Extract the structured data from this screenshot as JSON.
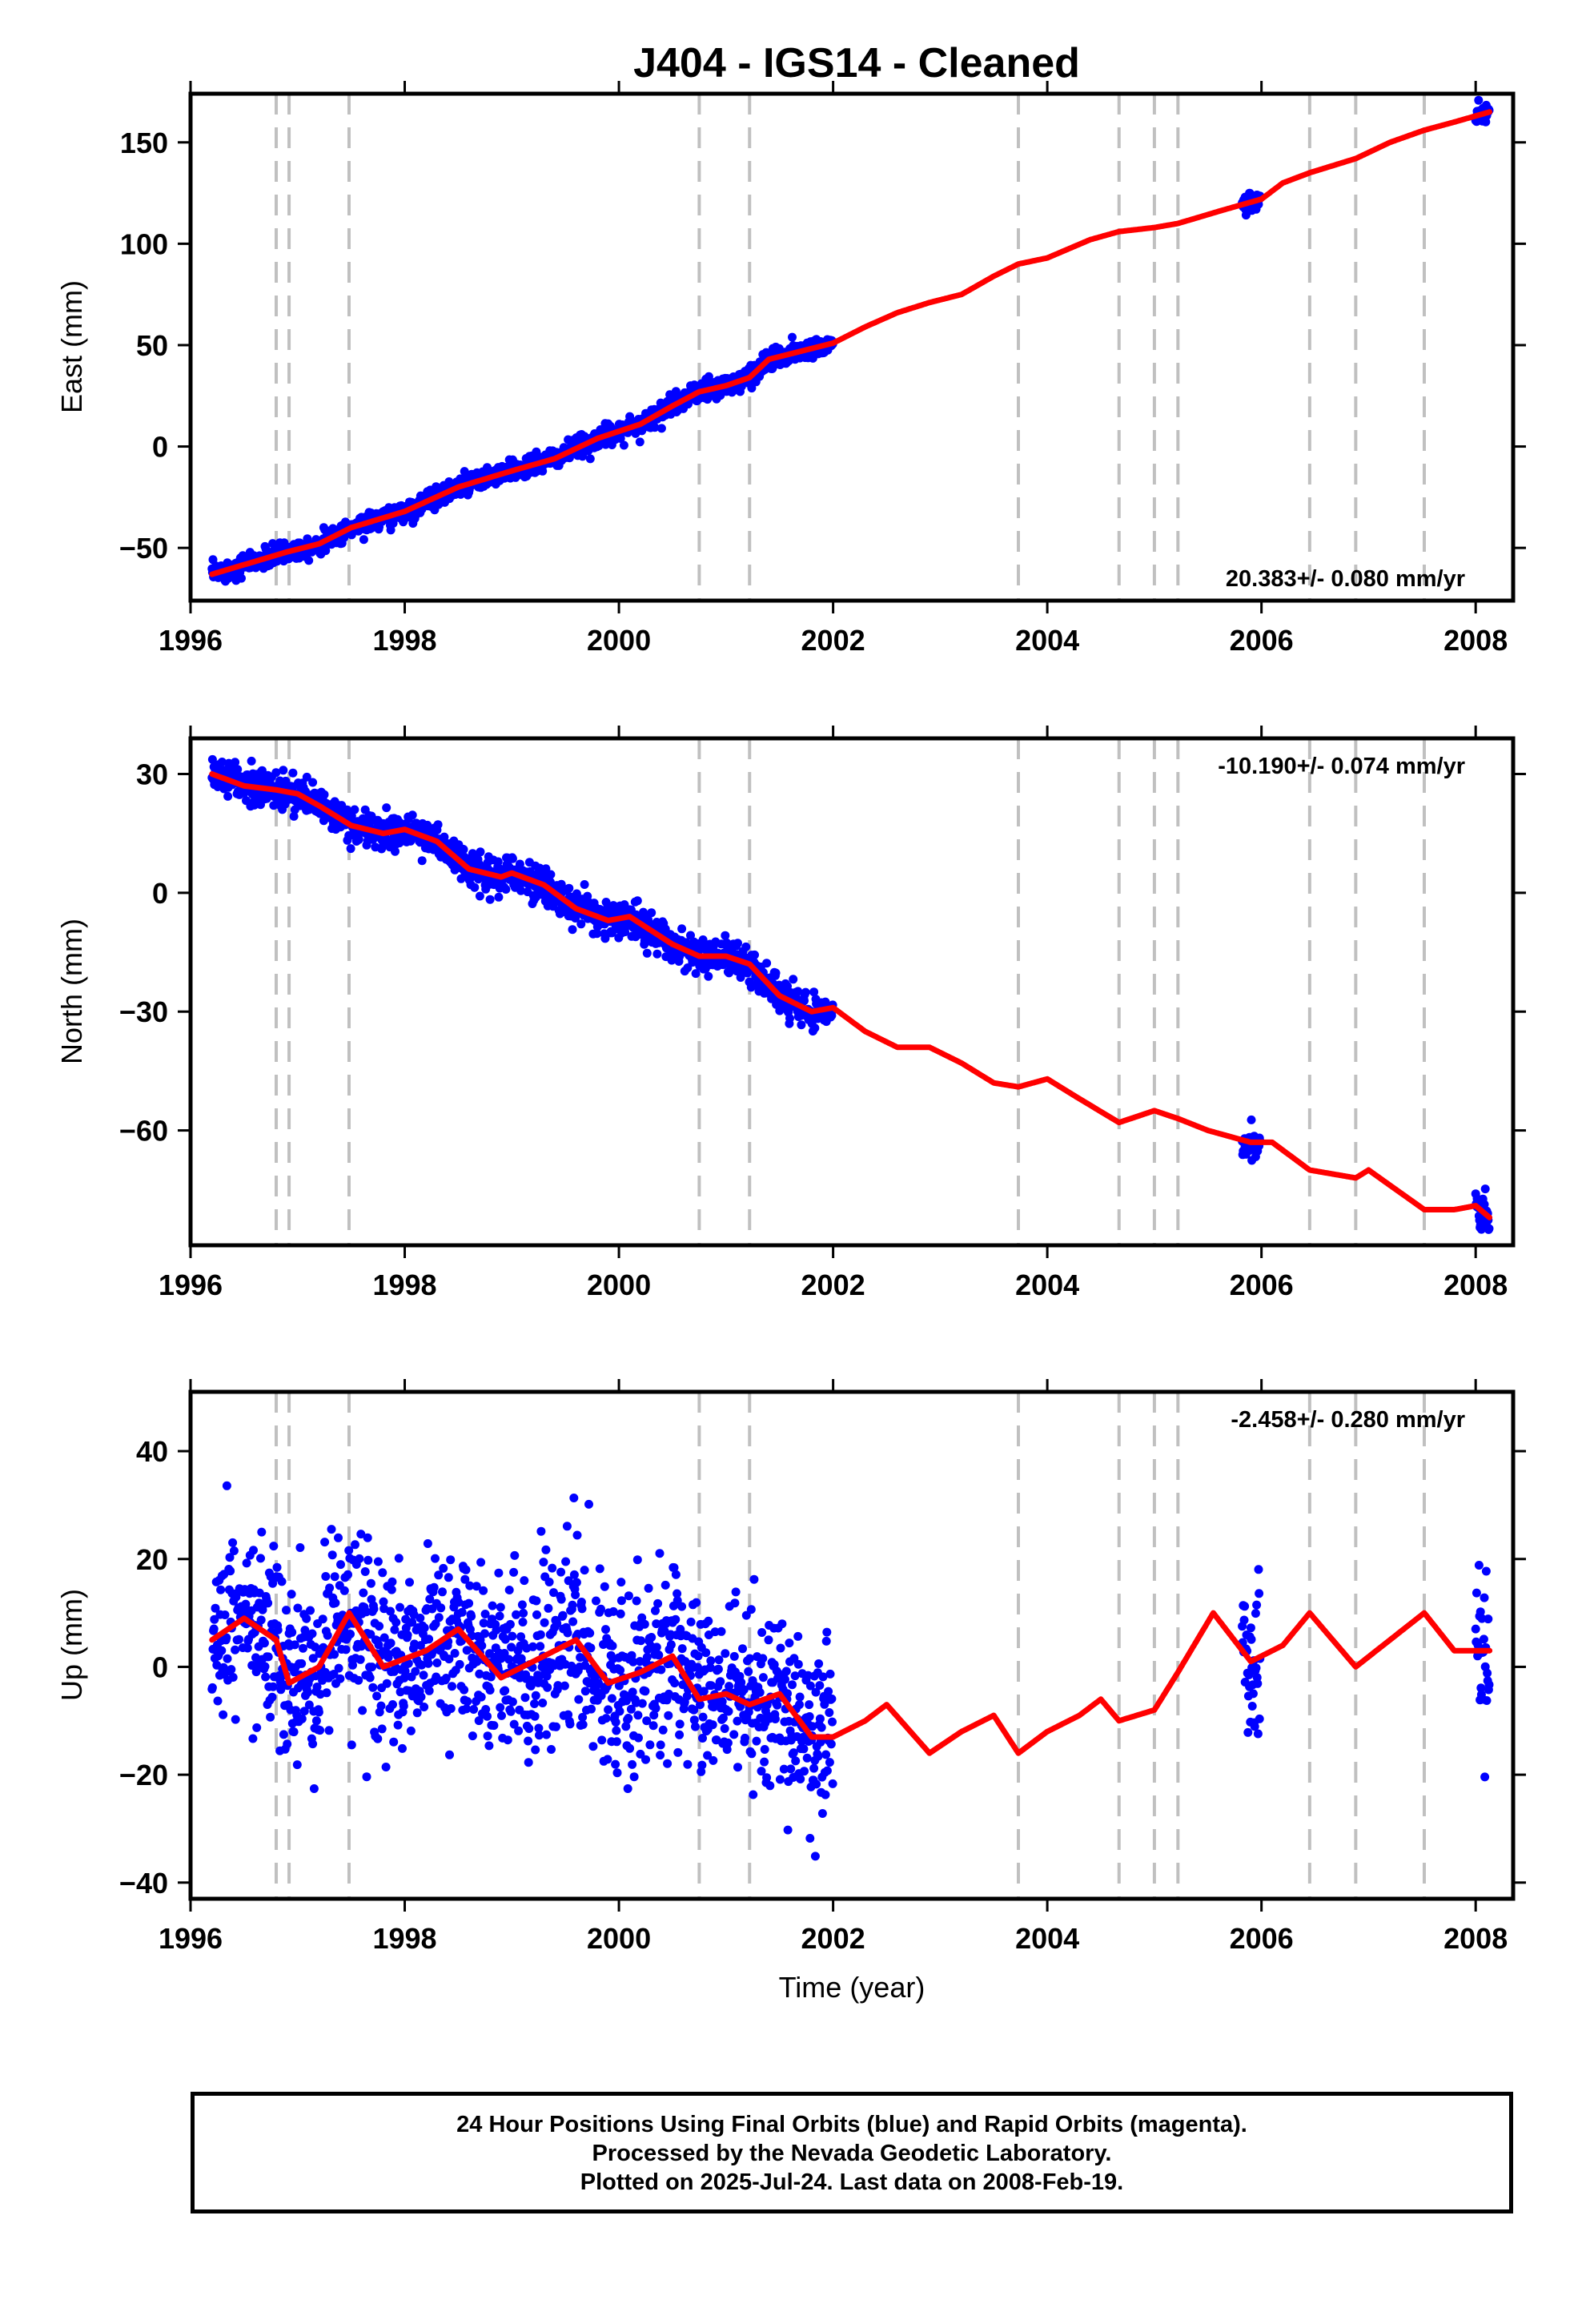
{
  "title": "J404  - IGS14 - Cleaned",
  "colors": {
    "data": "#0000ff",
    "model": "#ff0000",
    "event_line": "#c0c0c0",
    "frame": "#000000"
  },
  "chart_data": [
    {
      "type": "scatter",
      "ylabel": "East (mm)",
      "xlabel": "",
      "xlim": [
        1996,
        2008.35
      ],
      "ylim": [
        -76,
        174
      ],
      "xticks": [
        1996,
        1998,
        2000,
        2002,
        2004,
        2006,
        2008
      ],
      "yticks": [
        -50,
        0,
        50,
        100,
        150
      ],
      "rate_label": "20.383+/- 0.080 mm/yr",
      "rate_position": "bottom-right",
      "grid": false
    },
    {
      "type": "scatter",
      "ylabel": "North (mm)",
      "xlabel": "",
      "xlim": [
        1996,
        2008.35
      ],
      "ylim": [
        -89,
        39
      ],
      "xticks": [
        1996,
        1998,
        2000,
        2002,
        2004,
        2006,
        2008
      ],
      "yticks": [
        -60,
        -30,
        0,
        30
      ],
      "rate_label": "-10.190+/- 0.074 mm/yr",
      "rate_position": "top-right",
      "grid": false
    },
    {
      "type": "scatter",
      "ylabel": "Up (mm)",
      "xlabel": "Time (year)",
      "xlim": [
        1996,
        2008.35
      ],
      "ylim": [
        -43,
        51
      ],
      "xticks": [
        1996,
        1998,
        2000,
        2002,
        2004,
        2006,
        2008
      ],
      "yticks": [
        -40,
        -20,
        0,
        20,
        40
      ],
      "rate_label": "-2.458+/- 0.280 mm/yr",
      "rate_position": "top-right",
      "grid": false
    }
  ],
  "event_lines": [
    1996.8,
    1996.92,
    1997.48,
    2000.75,
    2001.22,
    2003.73,
    2004.67,
    2005.0,
    2005.22,
    2006.45,
    2006.88,
    2007.52
  ],
  "data_segments": [
    [
      1996.2,
      2002.0
    ],
    [
      2005.82,
      2005.99
    ],
    [
      2008.0,
      2008.13
    ]
  ],
  "model_knots": {
    "east": [
      [
        1996.2,
        -63
      ],
      [
        1996.9,
        -52
      ],
      [
        1997.2,
        -48
      ],
      [
        1997.5,
        -40
      ],
      [
        1998.0,
        -32
      ],
      [
        1998.5,
        -20
      ],
      [
        1999.0,
        -12
      ],
      [
        1999.4,
        -6
      ],
      [
        1999.8,
        4
      ],
      [
        2000.2,
        11
      ],
      [
        2000.5,
        20
      ],
      [
        2000.75,
        27
      ],
      [
        2001.0,
        30
      ],
      [
        2001.22,
        34
      ],
      [
        2001.4,
        43
      ],
      [
        2001.7,
        47
      ],
      [
        2002.0,
        51
      ],
      [
        2002.3,
        59
      ],
      [
        2002.6,
        66
      ],
      [
        2002.9,
        71
      ],
      [
        2003.2,
        75
      ],
      [
        2003.5,
        84
      ],
      [
        2003.73,
        90
      ],
      [
        2004.0,
        93
      ],
      [
        2004.4,
        102
      ],
      [
        2004.67,
        106
      ],
      [
        2005.0,
        108
      ],
      [
        2005.22,
        110
      ],
      [
        2005.6,
        116
      ],
      [
        2006.0,
        122
      ],
      [
        2006.2,
        130
      ],
      [
        2006.45,
        135
      ],
      [
        2006.88,
        142
      ],
      [
        2007.2,
        150
      ],
      [
        2007.52,
        156
      ],
      [
        2007.8,
        160
      ],
      [
        2008.13,
        165
      ]
    ],
    "north": [
      [
        1996.2,
        30
      ],
      [
        1996.5,
        27
      ],
      [
        1996.8,
        26
      ],
      [
        1997.0,
        25
      ],
      [
        1997.2,
        22
      ],
      [
        1997.5,
        17
      ],
      [
        1997.8,
        15
      ],
      [
        1998.0,
        16
      ],
      [
        1998.3,
        13
      ],
      [
        1998.6,
        6
      ],
      [
        1998.9,
        4
      ],
      [
        1999.0,
        5
      ],
      [
        1999.3,
        2
      ],
      [
        1999.6,
        -4
      ],
      [
        1999.9,
        -7
      ],
      [
        2000.1,
        -6
      ],
      [
        2000.5,
        -13
      ],
      [
        2000.75,
        -16
      ],
      [
        2001.0,
        -16
      ],
      [
        2001.22,
        -18
      ],
      [
        2001.5,
        -26
      ],
      [
        2001.8,
        -30
      ],
      [
        2002.0,
        -29
      ],
      [
        2002.3,
        -35
      ],
      [
        2002.6,
        -39
      ],
      [
        2002.9,
        -39
      ],
      [
        2003.2,
        -43
      ],
      [
        2003.5,
        -48
      ],
      [
        2003.73,
        -49
      ],
      [
        2004.0,
        -47
      ],
      [
        2004.3,
        -52
      ],
      [
        2004.67,
        -58
      ],
      [
        2005.0,
        -55
      ],
      [
        2005.22,
        -57
      ],
      [
        2005.5,
        -60
      ],
      [
        2005.9,
        -63
      ],
      [
        2006.1,
        -63
      ],
      [
        2006.45,
        -70
      ],
      [
        2006.88,
        -72
      ],
      [
        2007.0,
        -70
      ],
      [
        2007.52,
        -80
      ],
      [
        2007.8,
        -80
      ],
      [
        2008.0,
        -79
      ],
      [
        2008.13,
        -82
      ]
    ],
    "up": [
      [
        1996.2,
        5
      ],
      [
        1996.5,
        9
      ],
      [
        1996.8,
        5
      ],
      [
        1996.92,
        -3
      ],
      [
        1997.2,
        0
      ],
      [
        1997.48,
        10
      ],
      [
        1997.8,
        0
      ],
      [
        1998.2,
        3
      ],
      [
        1998.5,
        7
      ],
      [
        1998.9,
        -2
      ],
      [
        1999.3,
        2
      ],
      [
        1999.6,
        5
      ],
      [
        1999.9,
        -3
      ],
      [
        2000.2,
        -1
      ],
      [
        2000.5,
        2
      ],
      [
        2000.75,
        -6
      ],
      [
        2001.0,
        -5
      ],
      [
        2001.22,
        -7
      ],
      [
        2001.5,
        -5
      ],
      [
        2001.8,
        -13
      ],
      [
        2002.0,
        -13
      ],
      [
        2002.3,
        -10
      ],
      [
        2002.5,
        -7
      ],
      [
        2002.9,
        -16
      ],
      [
        2003.2,
        -12
      ],
      [
        2003.5,
        -9
      ],
      [
        2003.73,
        -16
      ],
      [
        2004.0,
        -12
      ],
      [
        2004.3,
        -9
      ],
      [
        2004.5,
        -6
      ],
      [
        2004.67,
        -10
      ],
      [
        2005.0,
        -8
      ],
      [
        2005.22,
        -1
      ],
      [
        2005.55,
        10
      ],
      [
        2005.9,
        1
      ],
      [
        2006.2,
        4
      ],
      [
        2006.45,
        10
      ],
      [
        2006.88,
        0
      ],
      [
        2007.2,
        5
      ],
      [
        2007.52,
        10
      ],
      [
        2007.8,
        3
      ],
      [
        2008.13,
        3
      ]
    ]
  },
  "noise_mm": {
    "east": 2.5,
    "north": 2.2,
    "up": 8
  },
  "footer": {
    "line1": "24 Hour Positions Using Final Orbits (blue) and Rapid Orbits (magenta).",
    "line2": "Processed by the Nevada Geodetic Laboratory.",
    "line3": "Plotted on 2025-Jul-24. Last data on 2008-Feb-19."
  }
}
